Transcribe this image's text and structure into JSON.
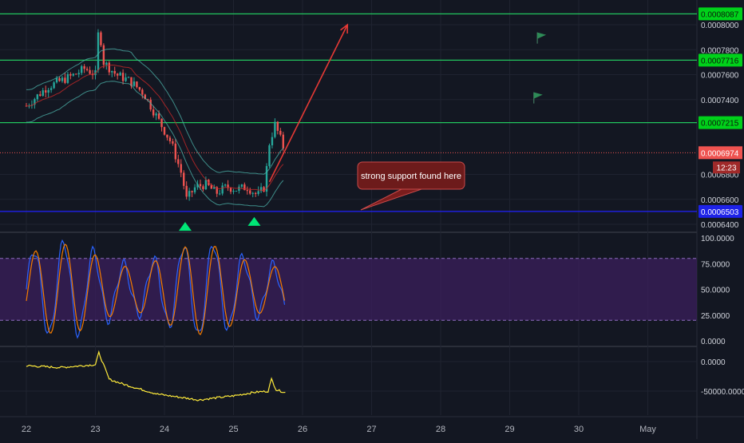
{
  "chart_data": {
    "type": "candlestick",
    "title": "",
    "x_ticks": [
      "22",
      "23",
      "24",
      "25",
      "26",
      "27",
      "28",
      "29",
      "30",
      "May"
    ],
    "main_pane": {
      "y_ticks": [
        "0.0008000",
        "0.0007800",
        "0.0007600",
        "0.0007400",
        "0.0006800",
        "0.0006600",
        "0.0006400"
      ],
      "ylim": [
        0.00063,
        0.000815
      ],
      "horizontal_levels": [
        {
          "value": 0.0008087,
          "label": "0.0008087",
          "color": "#22c55e"
        },
        {
          "value": 0.0007716,
          "label": "0.0007716",
          "color": "#22c55e"
        },
        {
          "value": 0.0007215,
          "label": "0.0007215",
          "color": "#22c55e"
        },
        {
          "value": 0.0006503,
          "label": "0.0006503",
          "color": "#2020ff"
        }
      ],
      "last_price": {
        "value": 0.0006974,
        "label": "0.0006974",
        "countdown": "12:23",
        "color": "#ef5350"
      },
      "price_path": [
        [
          0.0,
          0.000735
        ],
        [
          0.3,
          0.00075
        ],
        [
          0.5,
          0.000755
        ],
        [
          0.7,
          0.00076
        ],
        [
          0.85,
          0.000765
        ],
        [
          1.0,
          0.00076
        ],
        [
          1.05,
          0.0008
        ],
        [
          1.12,
          0.00077
        ],
        [
          1.3,
          0.00076
        ],
        [
          1.5,
          0.000755
        ],
        [
          1.7,
          0.000745
        ],
        [
          1.9,
          0.000725
        ],
        [
          2.1,
          0.000705
        ],
        [
          2.25,
          0.00068
        ],
        [
          2.32,
          0.00066
        ],
        [
          2.45,
          0.00067
        ],
        [
          2.6,
          0.000672
        ],
        [
          2.75,
          0.000665
        ],
        [
          2.9,
          0.00067
        ],
        [
          3.05,
          0.000668
        ],
        [
          3.2,
          0.00067
        ],
        [
          3.35,
          0.000663
        ],
        [
          3.45,
          0.00067
        ],
        [
          3.52,
          0.000705
        ],
        [
          3.6,
          0.00072
        ],
        [
          3.67,
          0.00071
        ],
        [
          3.75,
          0.0006974
        ]
      ],
      "annotation": {
        "text": "strong support found here"
      },
      "arrow": {
        "from": [
          3.52,
          0.000674
        ],
        "to": [
          4.65,
          0.0008
        ]
      },
      "up_triangles": [
        [
          2.3,
          0.000638
        ],
        [
          3.3,
          0.000642
        ]
      ],
      "flags": [
        [
          7.4,
          0.00079
        ],
        [
          7.35,
          0.000742
        ]
      ]
    },
    "stoch_pane": {
      "y_ticks": [
        "100.0000",
        "75.0000",
        "50.0000",
        "25.0000",
        "0.0000"
      ],
      "ylim": [
        0,
        100
      ],
      "band": [
        20,
        80
      ],
      "series": [
        {
          "color": "#2962ff"
        },
        {
          "color": "#f57c00"
        }
      ]
    },
    "osc_pane": {
      "y_ticks": [
        "0.0000",
        "-50000.0000"
      ],
      "ylim": [
        -80000,
        20000
      ],
      "series": [
        {
          "color": "#ffeb3b",
          "points": [
            [
              0.0,
              -7000
            ],
            [
              0.5,
              -10000
            ],
            [
              0.9,
              -6000
            ],
            [
              1.0,
              -5000
            ],
            [
              1.05,
              15000
            ],
            [
              1.2,
              -30000
            ],
            [
              1.4,
              -38000
            ],
            [
              1.6,
              -45000
            ],
            [
              1.9,
              -55000
            ],
            [
              2.2,
              -60000
            ],
            [
              2.5,
              -65000
            ],
            [
              2.7,
              -62000
            ],
            [
              3.0,
              -58000
            ],
            [
              3.3,
              -52000
            ],
            [
              3.5,
              -50000
            ],
            [
              3.55,
              -30000
            ],
            [
              3.62,
              -48000
            ],
            [
              3.75,
              -52000
            ]
          ]
        }
      ]
    },
    "grid": true
  }
}
